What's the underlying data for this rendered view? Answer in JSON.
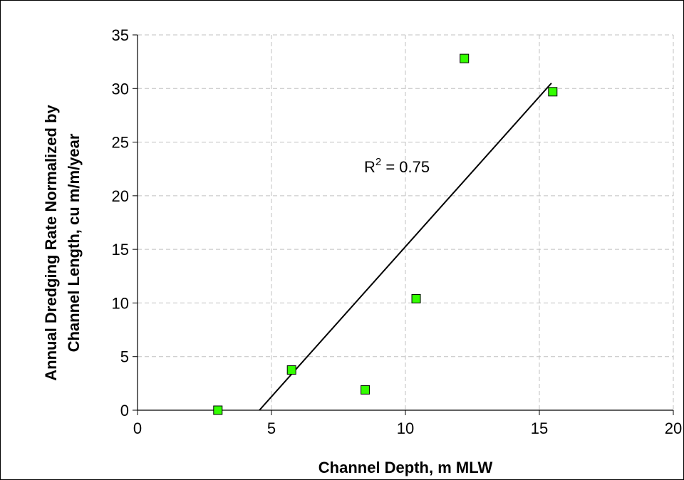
{
  "chart_data": {
    "type": "scatter",
    "title": "",
    "xlabel": "Channel Depth, m MLW",
    "ylabel_lines": [
      "Annual Dredging Rate Normalized by",
      "Channel Length, cu m/m/year"
    ],
    "xlim": [
      0,
      20
    ],
    "ylim": [
      0,
      35
    ],
    "x_ticks": [
      0,
      5,
      10,
      15,
      20
    ],
    "y_ticks": [
      0,
      5,
      10,
      15,
      20,
      25,
      30,
      35
    ],
    "grid": true,
    "legend": "none",
    "marker_color": "#33ff00",
    "marker_border": "#000000",
    "points": [
      {
        "x": 3.0,
        "y": 0.0
      },
      {
        "x": 5.75,
        "y": 3.75
      },
      {
        "x": 8.5,
        "y": 1.9
      },
      {
        "x": 10.4,
        "y": 10.4
      },
      {
        "x": 12.2,
        "y": 32.8
      },
      {
        "x": 15.5,
        "y": 29.7
      }
    ],
    "trendline": {
      "type": "linear",
      "x": [
        4.55,
        15.45
      ],
      "y": [
        0.0,
        30.5
      ],
      "annotation_base": "R",
      "annotation_sup": "2",
      "annotation_value": " = 0.75"
    }
  }
}
